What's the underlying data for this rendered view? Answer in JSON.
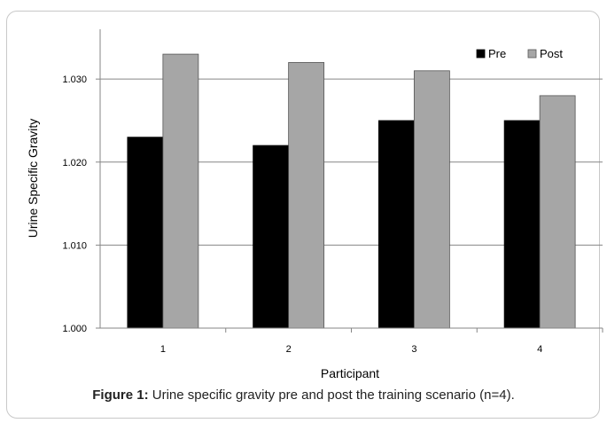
{
  "chart_data": {
    "type": "bar",
    "categories": [
      "1",
      "2",
      "3",
      "4"
    ],
    "series": [
      {
        "name": "Pre",
        "color": "#000000",
        "values": [
          1.023,
          1.022,
          1.025,
          1.025
        ]
      },
      {
        "name": "Post",
        "color": "#a6a6a6",
        "values": [
          1.033,
          1.032,
          1.031,
          1.028
        ]
      }
    ],
    "xlabel": "Participant",
    "ylabel": "Urine Specific Gravity",
    "ylim": [
      1.0,
      1.036
    ],
    "yticks": [
      "1.000",
      "1.010",
      "1.020",
      "1.030"
    ],
    "ytick_values": [
      1.0,
      1.01,
      1.02,
      1.03
    ],
    "grid": true,
    "legend_position": "top-right"
  },
  "caption": {
    "label": "Figure 1:",
    "text": " Urine specific gravity pre and post the training scenario (n=4)."
  }
}
